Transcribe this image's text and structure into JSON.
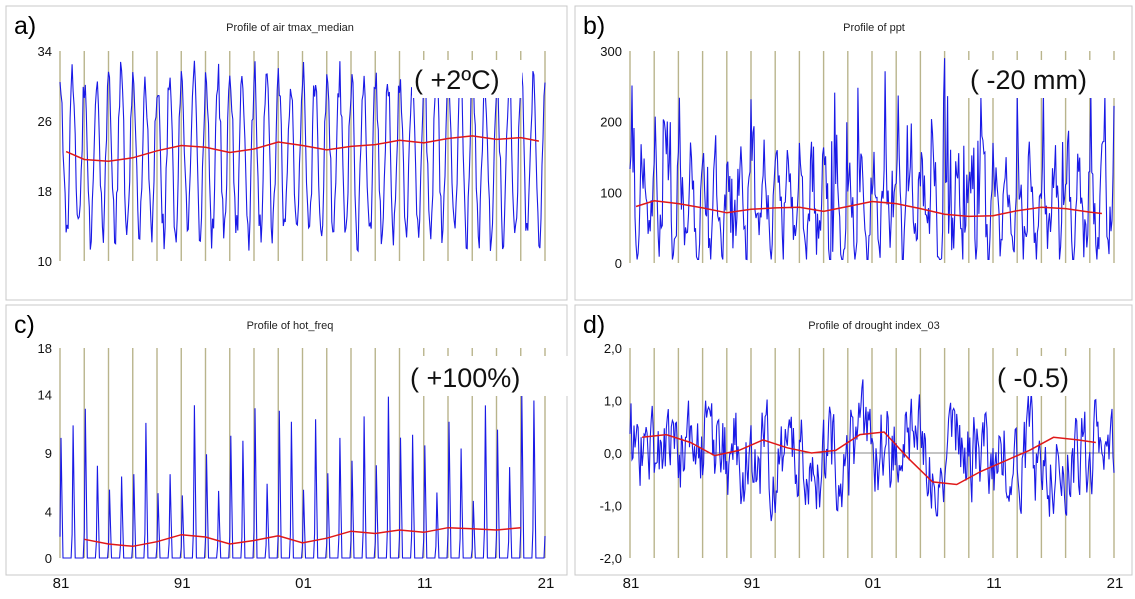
{
  "x_axis_labels": [
    "81",
    "91",
    "01",
    "11",
    "21"
  ],
  "chart_data": [
    {
      "id": "a",
      "type": "line",
      "panel_label": "a)",
      "title": "Profile of air tmax_median",
      "annotation": "( +2ºC)",
      "x_range": [
        1981,
        2021
      ],
      "ylim": [
        10,
        34
      ],
      "yticks": [
        {
          "value": 10,
          "label": "10"
        },
        {
          "value": 18,
          "label": "18"
        },
        {
          "value": 26,
          "label": "26"
        },
        {
          "value": 34,
          "label": "34"
        }
      ],
      "grid": "vertical yearly",
      "series": [
        {
          "role": "monthly",
          "color": "#1a1ae6",
          "data_start": 1981.0,
          "data_end": 2021.0,
          "seasonal_mean": 22,
          "seasonal_amplitude": 9,
          "noise": 2.2,
          "min": 10,
          "max": 34
        },
        {
          "role": "moving-average",
          "color": "#e01818",
          "x": [
            1981.5,
            1983,
            1985,
            1987,
            1989,
            1991,
            1993,
            1995,
            1997,
            1999,
            2001,
            2003,
            2005,
            2007,
            2009,
            2011,
            2013,
            2015,
            2017,
            2019,
            2020.5
          ],
          "y": [
            22.5,
            21.6,
            21.4,
            21.8,
            22.6,
            23.2,
            23.0,
            22.4,
            22.8,
            23.6,
            23.2,
            22.7,
            23.1,
            23.3,
            23.8,
            23.5,
            24.0,
            24.3,
            23.9,
            24.1,
            23.7
          ]
        }
      ]
    },
    {
      "id": "b",
      "type": "line",
      "panel_label": "b)",
      "title": "Profile of ppt",
      "annotation": "( -20 mm)",
      "x_range": [
        1981,
        2021
      ],
      "ylim": [
        0,
        300
      ],
      "yticks": [
        {
          "value": 0,
          "label": "0"
        },
        {
          "value": 100,
          "label": "100"
        },
        {
          "value": 200,
          "label": "200"
        },
        {
          "value": 300,
          "label": "300"
        }
      ],
      "grid": "vertical yearly",
      "series": [
        {
          "role": "monthly",
          "color": "#1a1ae6",
          "data_start": 1981.0,
          "data_end": 2021.0,
          "seasonal_mean": 80,
          "seasonal_amplitude": 60,
          "noise": 45,
          "min": 5,
          "max": 300
        },
        {
          "role": "moving-average",
          "color": "#e01818",
          "x": [
            1981.5,
            1983,
            1985,
            1987,
            1989,
            1991,
            1993,
            1995,
            1997,
            1999,
            2001,
            2003,
            2005,
            2007,
            2009,
            2011,
            2013,
            2015,
            2017,
            2019,
            2020
          ],
          "y": [
            80,
            88,
            84,
            78,
            71,
            76,
            78,
            79,
            73,
            80,
            87,
            84,
            77,
            69,
            66,
            67,
            74,
            79,
            77,
            72,
            70
          ]
        }
      ]
    },
    {
      "id": "c",
      "type": "line",
      "panel_label": "c)",
      "title": "Profile of hot_freq",
      "annotation": "( +100%)",
      "x_range": [
        1981,
        2021
      ],
      "ylim": [
        0,
        18
      ],
      "yticks": [
        {
          "value": 0,
          "label": "0"
        },
        {
          "value": 4,
          "label": "4"
        },
        {
          "value": 9,
          "label": "9"
        },
        {
          "value": 14,
          "label": "14"
        },
        {
          "value": 18,
          "label": "18"
        }
      ],
      "grid": "vertical yearly",
      "series": [
        {
          "role": "monthly",
          "color": "#1a1ae6",
          "data_start": 1981.0,
          "data_end": 2021.0,
          "peak_base": 5,
          "peak_range": 10,
          "min": 0,
          "max": 18
        },
        {
          "role": "moving-average",
          "color": "#e01818",
          "x": [
            1983,
            1985,
            1987,
            1989,
            1991,
            1993,
            1995,
            1997,
            1999,
            2001,
            2003,
            2005,
            2007,
            2009,
            2011,
            2013,
            2015,
            2017,
            2019
          ],
          "y": [
            1.6,
            1.2,
            1.0,
            1.4,
            2.0,
            1.8,
            1.2,
            1.5,
            1.9,
            1.3,
            1.7,
            2.3,
            2.1,
            2.4,
            2.2,
            2.6,
            2.5,
            2.4,
            2.6
          ]
        }
      ]
    },
    {
      "id": "d",
      "type": "line",
      "panel_label": "d)",
      "title": "Profile of drought index_03",
      "annotation": "( -0.5)",
      "x_range": [
        1981,
        2021
      ],
      "ylim": [
        -2.0,
        2.0
      ],
      "yticks": [
        {
          "value": -2.0,
          "label": "-2,0"
        },
        {
          "value": -1.0,
          "label": "-1,0"
        },
        {
          "value": 0.0,
          "label": "0,0"
        },
        {
          "value": 1.0,
          "label": "1,0"
        },
        {
          "value": 2.0,
          "label": "2,0"
        }
      ],
      "grid": "vertical yearly",
      "zero_line": true,
      "series": [
        {
          "role": "monthly",
          "color": "#1a1ae6",
          "data_start": 1981.0,
          "data_end": 2021.0,
          "noise": 0.75,
          "min": -2.0,
          "max": 1.6
        },
        {
          "role": "moving-average",
          "color": "#e01818",
          "x": [
            1982,
            1984,
            1986,
            1988,
            1990,
            1992,
            1994,
            1996,
            1998,
            2000,
            2002,
            2004,
            2006,
            2008,
            2010,
            2012,
            2014,
            2016,
            2018,
            2019.5
          ],
          "y": [
            0.3,
            0.35,
            0.2,
            -0.05,
            0.05,
            0.25,
            0.1,
            0.0,
            0.05,
            0.35,
            0.4,
            -0.1,
            -0.55,
            -0.6,
            -0.35,
            -0.15,
            0.05,
            0.3,
            0.25,
            0.2
          ]
        }
      ]
    }
  ]
}
